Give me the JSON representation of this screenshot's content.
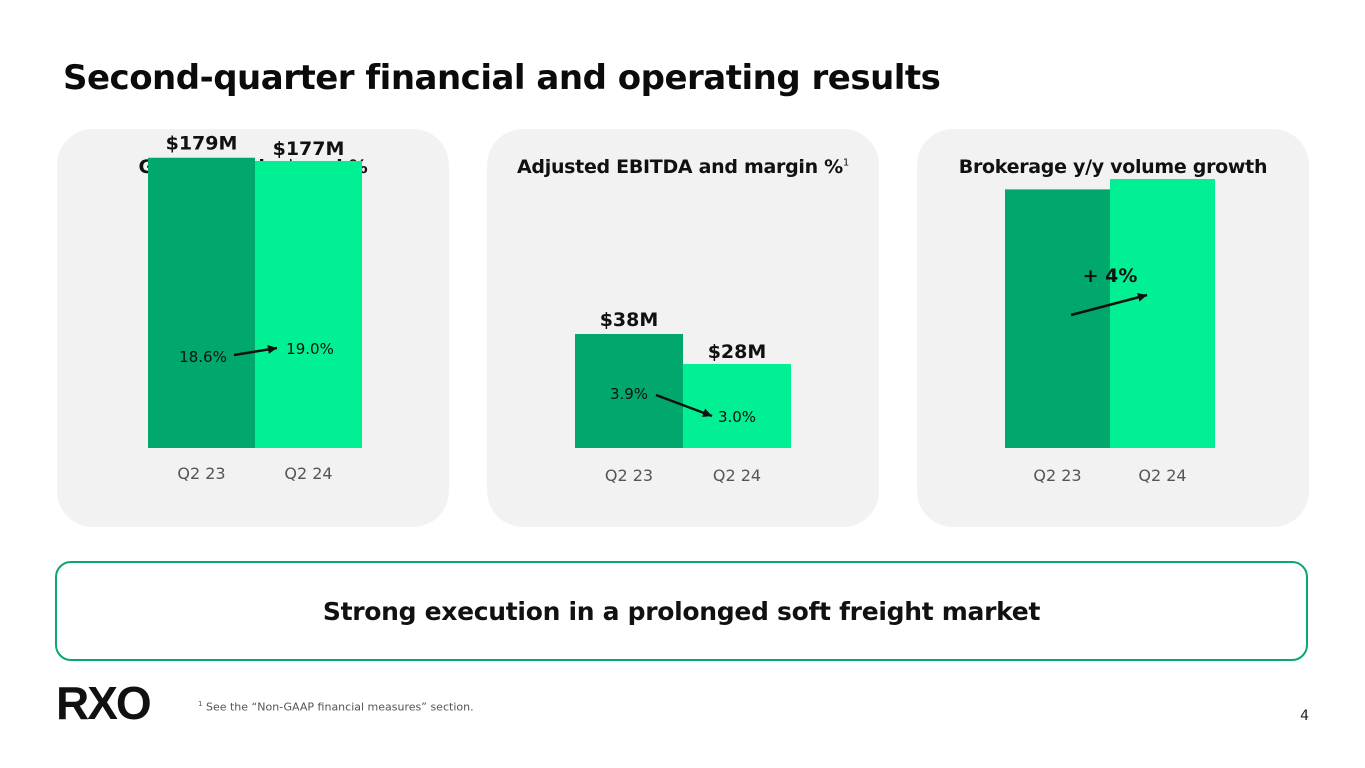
{
  "page": {
    "title": "Second-quarter financial and operating results",
    "banner": "Strong execution in a prolonged soft freight market",
    "logo": "RXO",
    "footnote_mark": "1",
    "footnote": "See the “Non-GAAP financial measures” section.",
    "page_number": "4"
  },
  "colors": {
    "dark_bar": "#00A86B",
    "light_bar": "#00F093",
    "accent_border": "#0AA86A",
    "card_bg": "#F2F2F2"
  },
  "chart_data": [
    {
      "type": "bar",
      "title": "Gross margin $ and %",
      "title_sup": "",
      "categories": [
        "Q2 23",
        "Q2 24"
      ],
      "values": [
        179,
        177
      ],
      "unit": "$M",
      "value_labels": [
        "$179M",
        "$177M"
      ],
      "inner_labels": [
        "18.6%",
        "19.0%"
      ],
      "ylim": [
        0,
        185
      ],
      "bar_colors": [
        "#00A86B",
        "#00F093"
      ]
    },
    {
      "type": "bar",
      "title": "Adjusted EBITDA and margin %",
      "title_sup": "1",
      "categories": [
        "Q2 23",
        "Q2 24"
      ],
      "values": [
        38,
        28
      ],
      "unit": "$M",
      "value_labels": [
        "$38M",
        "$28M"
      ],
      "inner_labels": [
        "3.9%",
        "3.0%"
      ],
      "ylim": [
        0,
        100
      ],
      "bar_colors": [
        "#00A86B",
        "#00F093"
      ]
    },
    {
      "type": "bar",
      "title": "Brokerage y/y volume growth",
      "title_sup": "",
      "categories": [
        "Q2 23",
        "Q2 24"
      ],
      "values": [
        100,
        104
      ],
      "unit": "index",
      "value_labels": [],
      "inner_labels": [],
      "change_label": "+ 4%",
      "ylim": [
        0,
        116
      ],
      "bar_colors": [
        "#00A86B",
        "#00F093"
      ]
    }
  ]
}
